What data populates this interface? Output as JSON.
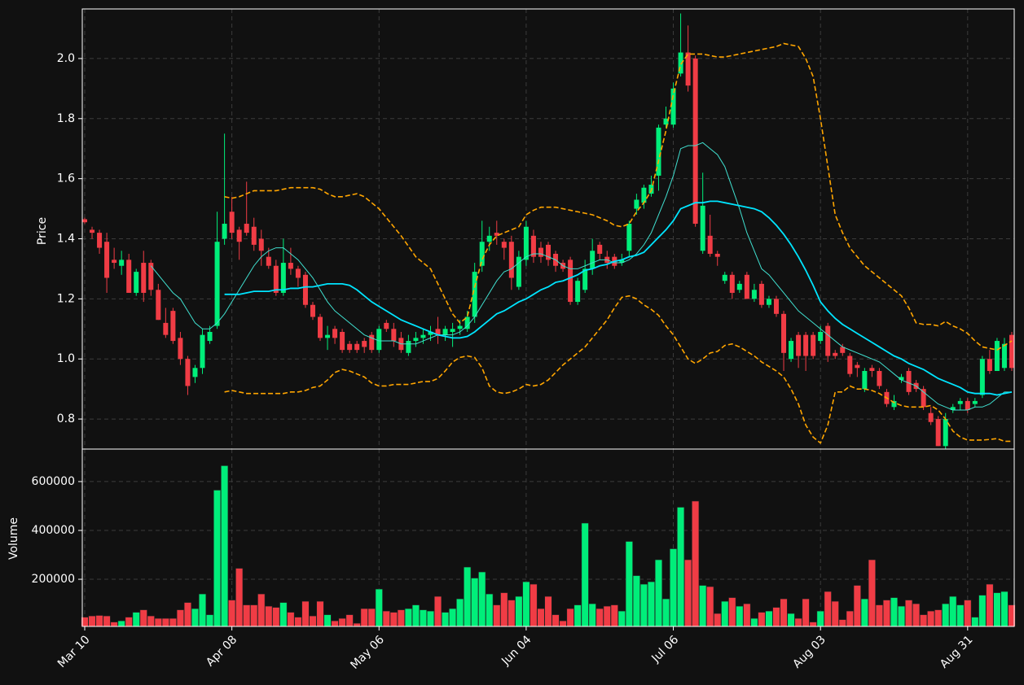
{
  "chart_data": {
    "type": "candlestick",
    "ylabel": "Price",
    "categories": [
      "Mar 10",
      null,
      null,
      null,
      null,
      null,
      null,
      null,
      null,
      null,
      null,
      null,
      null,
      null,
      null,
      null,
      null,
      null,
      null,
      null,
      "Apr 08",
      null,
      null,
      null,
      null,
      null,
      null,
      null,
      null,
      null,
      null,
      null,
      null,
      null,
      null,
      null,
      null,
      null,
      null,
      null,
      "May 06",
      null,
      null,
      null,
      null,
      null,
      null,
      null,
      null,
      null,
      null,
      null,
      null,
      null,
      null,
      null,
      null,
      null,
      null,
      null,
      "Jun 04",
      null,
      null,
      null,
      null,
      null,
      null,
      null,
      null,
      null,
      null,
      null,
      null,
      null,
      null,
      null,
      null,
      null,
      null,
      null,
      "Jul 06",
      null,
      null,
      null,
      null,
      null,
      null,
      null,
      null,
      null,
      null,
      null,
      null,
      null,
      null,
      null,
      null,
      null,
      null,
      null,
      "Aug 03",
      null,
      null,
      null,
      null,
      null,
      null,
      null,
      null,
      null,
      null,
      null,
      null,
      null,
      null,
      null,
      null,
      null,
      null,
      null,
      "Aug 31",
      null,
      null,
      null,
      null,
      null,
      null
    ],
    "open": [
      1.465,
      1.43,
      1.42,
      1.39,
      1.33,
      1.31,
      1.33,
      1.22,
      1.32,
      1.32,
      1.23,
      1.12,
      1.16,
      1.07,
      1.0,
      0.94,
      0.97,
      1.06,
      1.11,
      1.4,
      1.49,
      1.43,
      1.45,
      1.44,
      1.4,
      1.34,
      1.31,
      1.22,
      1.32,
      1.3,
      1.28,
      1.18,
      1.14,
      1.07,
      1.1,
      1.09,
      1.05,
      1.05,
      1.06,
      1.08,
      1.03,
      1.12,
      1.1,
      1.07,
      1.02,
      1.06,
      1.07,
      1.08,
      1.1,
      1.08,
      1.09,
      1.1,
      1.1,
      1.14,
      1.31,
      1.39,
      1.42,
      1.39,
      1.39,
      1.24,
      1.33,
      1.41,
      1.37,
      1.38,
      1.35,
      1.32,
      1.33,
      1.19,
      1.23,
      1.3,
      1.38,
      1.34,
      1.34,
      1.32,
      1.36,
      1.5,
      1.52,
      1.55,
      1.61,
      1.78,
      1.78,
      1.95,
      2.02,
      2.0,
      1.36,
      1.41,
      1.35,
      1.26,
      1.28,
      1.23,
      1.28,
      1.2,
      1.25,
      1.18,
      1.2,
      1.15,
      1.0,
      1.08,
      1.08,
      1.08,
      1.06,
      1.11,
      1.02,
      1.04,
      1.01,
      0.98,
      0.9,
      0.97,
      0.96,
      0.89,
      0.84,
      0.93,
      0.96,
      0.92,
      0.9,
      0.82,
      0.8,
      0.71,
      0.83,
      0.85,
      0.86,
      0.85,
      0.88,
      1.0,
      0.96,
      0.97,
      1.08
    ],
    "high": [
      1.47,
      1.44,
      1.43,
      1.42,
      1.37,
      1.36,
      1.35,
      1.3,
      1.36,
      1.33,
      1.25,
      1.17,
      1.17,
      1.09,
      1.01,
      0.98,
      1.1,
      1.11,
      1.49,
      1.75,
      1.54,
      1.44,
      1.59,
      1.47,
      1.43,
      1.37,
      1.33,
      1.4,
      1.37,
      1.31,
      1.29,
      1.19,
      1.15,
      1.11,
      1.11,
      1.1,
      1.06,
      1.06,
      1.07,
      1.09,
      1.11,
      1.13,
      1.12,
      1.09,
      1.08,
      1.09,
      1.1,
      1.11,
      1.14,
      1.11,
      1.12,
      1.13,
      1.16,
      1.32,
      1.46,
      1.44,
      1.46,
      1.4,
      1.41,
      1.36,
      1.46,
      1.43,
      1.39,
      1.39,
      1.36,
      1.33,
      1.34,
      1.27,
      1.33,
      1.4,
      1.39,
      1.36,
      1.35,
      1.35,
      1.46,
      1.55,
      1.58,
      1.61,
      1.78,
      1.84,
      1.92,
      2.15,
      2.11,
      2.01,
      1.62,
      1.48,
      1.36,
      1.29,
      1.29,
      1.26,
      1.29,
      1.25,
      1.26,
      1.21,
      1.21,
      1.16,
      1.07,
      1.09,
      1.09,
      1.09,
      1.11,
      1.12,
      1.03,
      1.05,
      1.02,
      0.99,
      0.97,
      0.98,
      0.97,
      0.9,
      0.88,
      0.95,
      0.97,
      0.93,
      0.91,
      0.84,
      0.81,
      0.82,
      0.85,
      0.87,
      0.87,
      0.87,
      1.01,
      1.03,
      1.07,
      1.07,
      1.09
    ],
    "low": [
      1.45,
      1.4,
      1.35,
      1.22,
      1.3,
      1.28,
      1.22,
      1.21,
      1.19,
      1.21,
      1.13,
      1.07,
      1.05,
      0.98,
      0.88,
      0.92,
      0.95,
      1.05,
      1.1,
      1.38,
      1.4,
      1.33,
      1.41,
      1.36,
      1.31,
      1.3,
      1.21,
      1.21,
      1.28,
      1.24,
      1.17,
      1.13,
      1.06,
      1.03,
      1.05,
      1.02,
      1.02,
      1.02,
      1.02,
      1.02,
      1.02,
      1.09,
      1.04,
      1.02,
      1.01,
      1.04,
      1.05,
      1.06,
      1.05,
      1.06,
      1.04,
      1.08,
      1.09,
      1.12,
      1.29,
      1.36,
      1.38,
      1.33,
      1.23,
      1.23,
      1.31,
      1.32,
      1.32,
      1.31,
      1.29,
      1.29,
      1.18,
      1.18,
      1.22,
      1.28,
      1.33,
      1.3,
      1.3,
      1.31,
      1.34,
      1.48,
      1.5,
      1.54,
      1.56,
      1.77,
      1.77,
      1.94,
      1.89,
      1.44,
      1.35,
      1.34,
      1.31,
      1.25,
      1.2,
      1.22,
      1.2,
      1.19,
      1.17,
      1.17,
      1.14,
      0.96,
      0.99,
      0.97,
      0.96,
      1.0,
      1.05,
      0.99,
      1.0,
      1.01,
      0.94,
      0.94,
      0.89,
      0.94,
      0.9,
      0.84,
      0.83,
      0.92,
      0.88,
      0.89,
      0.83,
      0.78,
      0.71,
      0.7,
      0.82,
      0.83,
      0.82,
      0.84,
      0.87,
      0.95,
      0.96,
      0.96,
      0.96
    ],
    "close": [
      1.455,
      1.42,
      1.37,
      1.27,
      1.32,
      1.33,
      1.22,
      1.29,
      1.22,
      1.23,
      1.13,
      1.08,
      1.06,
      1.0,
      0.91,
      0.97,
      1.08,
      1.09,
      1.39,
      1.45,
      1.42,
      1.39,
      1.42,
      1.38,
      1.36,
      1.31,
      1.22,
      1.32,
      1.3,
      1.27,
      1.18,
      1.14,
      1.07,
      1.08,
      1.07,
      1.03,
      1.03,
      1.03,
      1.04,
      1.03,
      1.1,
      1.1,
      1.06,
      1.03,
      1.06,
      1.07,
      1.08,
      1.09,
      1.08,
      1.1,
      1.1,
      1.11,
      1.14,
      1.29,
      1.39,
      1.41,
      1.41,
      1.37,
      1.27,
      1.34,
      1.44,
      1.34,
      1.34,
      1.33,
      1.31,
      1.3,
      1.19,
      1.26,
      1.3,
      1.36,
      1.35,
      1.32,
      1.31,
      1.33,
      1.45,
      1.53,
      1.57,
      1.58,
      1.77,
      1.8,
      1.9,
      2.02,
      1.91,
      1.45,
      1.51,
      1.35,
      1.34,
      1.28,
      1.22,
      1.25,
      1.2,
      1.23,
      1.18,
      1.2,
      1.15,
      1.02,
      1.06,
      1.01,
      1.01,
      1.01,
      1.09,
      1.01,
      1.01,
      1.02,
      0.95,
      0.97,
      0.96,
      0.96,
      0.91,
      0.85,
      0.86,
      0.94,
      0.89,
      0.9,
      0.84,
      0.79,
      0.71,
      0.8,
      0.84,
      0.86,
      0.83,
      0.86,
      1.0,
      0.96,
      1.06,
      1.05,
      0.97
    ],
    "up_color": "#00ee7a",
    "down_color": "#f03c45",
    "lines": [
      {
        "color": "#40e0d0",
        "width": 1,
        "dashed": false,
        "values": [
          null,
          null,
          null,
          null,
          null,
          null,
          null,
          null,
          null,
          1.31,
          1.28,
          1.25,
          1.22,
          1.2,
          1.16,
          1.12,
          1.1,
          1.1,
          1.12,
          1.15,
          1.19,
          1.23,
          1.27,
          1.31,
          1.34,
          1.36,
          1.37,
          1.37,
          1.35,
          1.33,
          1.3,
          1.27,
          1.23,
          1.19,
          1.16,
          1.14,
          1.12,
          1.1,
          1.08,
          1.07,
          1.06,
          1.06,
          1.06,
          1.05,
          1.05,
          1.05,
          1.06,
          1.07,
          1.08,
          1.08,
          1.08,
          1.09,
          1.11,
          1.14,
          1.18,
          1.22,
          1.26,
          1.29,
          1.3,
          1.32,
          1.34,
          1.35,
          1.35,
          1.34,
          1.33,
          1.31,
          1.3,
          1.3,
          1.31,
          1.32,
          1.33,
          1.33,
          1.32,
          1.32,
          1.33,
          1.35,
          1.38,
          1.42,
          1.48,
          1.54,
          1.61,
          1.7,
          1.71,
          1.71,
          1.72,
          1.7,
          1.68,
          1.64,
          1.57,
          1.5,
          1.42,
          1.36,
          1.3,
          1.28,
          1.25,
          1.22,
          1.19,
          1.16,
          1.14,
          1.12,
          1.1,
          1.08,
          1.06,
          1.04,
          1.03,
          1.02,
          1.01,
          1.0,
          0.99,
          0.97,
          0.95,
          0.93,
          0.92,
          0.91,
          0.89,
          0.87,
          0.85,
          0.84,
          0.83,
          0.83,
          0.83,
          0.84,
          0.84,
          0.85,
          0.87,
          0.89,
          0.89
        ]
      },
      {
        "color": "#00e5ff",
        "width": 1.8,
        "dashed": false,
        "values": [
          null,
          null,
          null,
          null,
          null,
          null,
          null,
          null,
          null,
          null,
          null,
          null,
          null,
          null,
          null,
          null,
          null,
          null,
          null,
          1.215,
          1.215,
          1.215,
          1.22,
          1.225,
          1.225,
          1.225,
          1.23,
          1.23,
          1.235,
          1.235,
          1.24,
          1.24,
          1.245,
          1.25,
          1.25,
          1.25,
          1.245,
          1.23,
          1.21,
          1.19,
          1.175,
          1.16,
          1.145,
          1.13,
          1.12,
          1.11,
          1.1,
          1.09,
          1.08,
          1.075,
          1.07,
          1.07,
          1.075,
          1.09,
          1.11,
          1.13,
          1.15,
          1.16,
          1.175,
          1.19,
          1.2,
          1.215,
          1.23,
          1.24,
          1.255,
          1.26,
          1.27,
          1.28,
          1.295,
          1.3,
          1.31,
          1.315,
          1.325,
          1.33,
          1.34,
          1.345,
          1.355,
          1.38,
          1.405,
          1.43,
          1.46,
          1.5,
          1.51,
          1.52,
          1.52,
          1.525,
          1.525,
          1.52,
          1.515,
          1.51,
          1.505,
          1.5,
          1.49,
          1.47,
          1.445,
          1.415,
          1.38,
          1.34,
          1.295,
          1.245,
          1.19,
          1.16,
          1.135,
          1.115,
          1.1,
          1.085,
          1.07,
          1.055,
          1.04,
          1.025,
          1.01,
          1.0,
          0.985,
          0.975,
          0.965,
          0.95,
          0.935,
          0.925,
          0.915,
          0.905,
          0.89,
          0.885,
          0.885,
          0.885,
          0.88,
          0.885,
          0.89
        ]
      },
      {
        "color": "#ffa500",
        "width": 1.6,
        "dashed": true,
        "values": [
          null,
          null,
          null,
          null,
          null,
          null,
          null,
          null,
          null,
          null,
          null,
          null,
          null,
          null,
          null,
          null,
          null,
          null,
          null,
          1.54,
          1.535,
          1.54,
          1.55,
          1.56,
          1.56,
          1.56,
          1.56,
          1.565,
          1.57,
          1.57,
          1.57,
          1.57,
          1.565,
          1.55,
          1.54,
          1.54,
          1.545,
          1.55,
          1.54,
          1.52,
          1.5,
          1.47,
          1.44,
          1.41,
          1.375,
          1.34,
          1.32,
          1.3,
          1.25,
          1.2,
          1.15,
          1.12,
          1.14,
          1.24,
          1.33,
          1.38,
          1.41,
          1.42,
          1.43,
          1.44,
          1.48,
          1.495,
          1.505,
          1.505,
          1.505,
          1.5,
          1.495,
          1.49,
          1.485,
          1.48,
          1.47,
          1.46,
          1.445,
          1.44,
          1.45,
          1.49,
          1.52,
          1.56,
          1.66,
          1.76,
          1.88,
          1.98,
          2.015,
          2.015,
          2.015,
          2.01,
          2.005,
          2.005,
          2.01,
          2.015,
          2.02,
          2.025,
          2.03,
          2.035,
          2.04,
          2.05,
          2.045,
          2.04,
          2.0,
          1.94,
          1.8,
          1.64,
          1.48,
          1.42,
          1.37,
          1.34,
          1.31,
          1.29,
          1.27,
          1.25,
          1.23,
          1.21,
          1.17,
          1.12,
          1.115,
          1.115,
          1.11,
          1.125,
          1.11,
          1.1,
          1.085,
          1.06,
          1.04,
          1.035,
          1.03,
          1.045,
          1.06
        ]
      },
      {
        "color": "#ffa500",
        "width": 1.6,
        "dashed": true,
        "values": [
          null,
          null,
          null,
          null,
          null,
          null,
          null,
          null,
          null,
          null,
          null,
          null,
          null,
          null,
          null,
          null,
          null,
          null,
          null,
          0.89,
          0.895,
          0.89,
          0.885,
          0.885,
          0.885,
          0.885,
          0.885,
          0.885,
          0.89,
          0.89,
          0.895,
          0.905,
          0.91,
          0.93,
          0.955,
          0.965,
          0.96,
          0.95,
          0.94,
          0.92,
          0.91,
          0.91,
          0.915,
          0.915,
          0.915,
          0.92,
          0.925,
          0.925,
          0.935,
          0.96,
          0.99,
          1.005,
          1.01,
          1.005,
          0.97,
          0.91,
          0.89,
          0.885,
          0.89,
          0.9,
          0.915,
          0.91,
          0.915,
          0.93,
          0.955,
          0.98,
          1.0,
          1.02,
          1.04,
          1.07,
          1.1,
          1.13,
          1.17,
          1.205,
          1.21,
          1.2,
          1.18,
          1.165,
          1.145,
          1.11,
          1.08,
          1.04,
          1.0,
          0.985,
          1.0,
          1.02,
          1.025,
          1.045,
          1.05,
          1.04,
          1.025,
          1.01,
          0.99,
          0.975,
          0.96,
          0.94,
          0.9,
          0.85,
          0.78,
          0.74,
          0.72,
          0.78,
          0.89,
          0.89,
          0.91,
          0.9,
          0.9,
          0.895,
          0.885,
          0.87,
          0.855,
          0.845,
          0.84,
          0.84,
          0.84,
          0.845,
          0.83,
          0.8,
          0.76,
          0.74,
          0.73,
          0.73,
          0.73,
          0.732,
          0.735,
          0.726,
          0.726
        ]
      }
    ],
    "ylim": [
      0.7,
      2.165
    ],
    "yticks": [
      0.8,
      1.2,
      {
        "value": 1,
        "label": "1.0"
      },
      1.4,
      1.6,
      1.8,
      {
        "value": 2,
        "label": "2.0"
      }
    ],
    "grid": true,
    "volume": {
      "type": "bar",
      "ylabel": "Volume",
      "values": [
        45000,
        50000,
        52000,
        50000,
        25000,
        30000,
        45000,
        65000,
        75000,
        50000,
        40000,
        40000,
        40000,
        75000,
        105000,
        80000,
        140000,
        55000,
        565000,
        665000,
        115000,
        245000,
        95000,
        95000,
        140000,
        90000,
        85000,
        105000,
        65000,
        45000,
        110000,
        50000,
        110000,
        55000,
        30000,
        40000,
        55000,
        20000,
        80000,
        80000,
        160000,
        70000,
        65000,
        75000,
        80000,
        95000,
        75000,
        70000,
        130000,
        65000,
        80000,
        120000,
        250000,
        205000,
        230000,
        140000,
        95000,
        145000,
        115000,
        130000,
        190000,
        180000,
        80000,
        130000,
        55000,
        30000,
        80000,
        95000,
        430000,
        100000,
        80000,
        90000,
        95000,
        70000,
        355000,
        215000,
        180000,
        190000,
        280000,
        120000,
        325000,
        495000,
        280000,
        520000,
        175000,
        170000,
        60000,
        110000,
        125000,
        90000,
        100000,
        40000,
        65000,
        70000,
        85000,
        120000,
        60000,
        40000,
        120000,
        25000,
        70000,
        150000,
        110000,
        35000,
        70000,
        175000,
        120000,
        280000,
        95000,
        115000,
        125000,
        90000,
        115000,
        100000,
        55000,
        70000,
        75000,
        100000,
        130000,
        95000,
        115000,
        45000,
        135000,
        180000,
        145000,
        150000,
        95000
      ],
      "ylim": [
        7000,
        733000
      ],
      "yticks": [
        200000,
        400000,
        600000
      ]
    }
  }
}
